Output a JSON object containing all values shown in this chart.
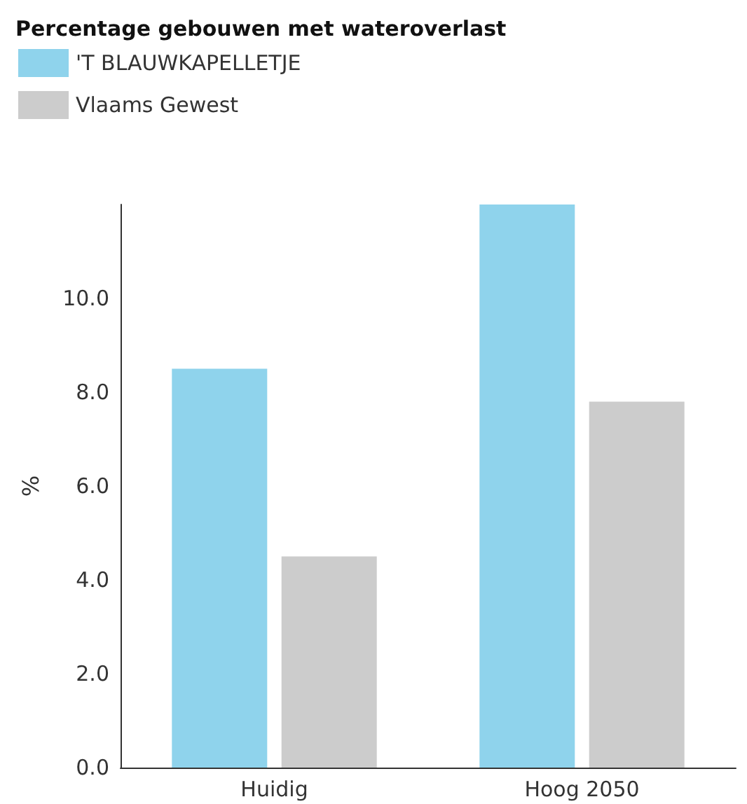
{
  "chart_data": {
    "type": "bar",
    "title": "Percentage gebouwen met wateroverlast",
    "ylabel": "%",
    "categories": [
      "Huidig",
      "Hoog 2050"
    ],
    "series": [
      {
        "name": "'T BLAUWKAPELLETJE",
        "color": "#8fd3ec",
        "values": [
          8.5,
          12.0
        ]
      },
      {
        "name": "Vlaams Gewest",
        "color": "#cccccc",
        "values": [
          4.5,
          7.8
        ]
      }
    ],
    "ylim": [
      0,
      12
    ],
    "yticks": [
      {
        "value": 0,
        "label": "0.0"
      },
      {
        "value": 2,
        "label": "2.0"
      },
      {
        "value": 4,
        "label": "4.0"
      },
      {
        "value": 6,
        "label": "6.0"
      },
      {
        "value": 8,
        "label": "8.0"
      },
      {
        "value": 10,
        "label": "10.0"
      }
    ],
    "grid": false,
    "legend": "top left"
  }
}
